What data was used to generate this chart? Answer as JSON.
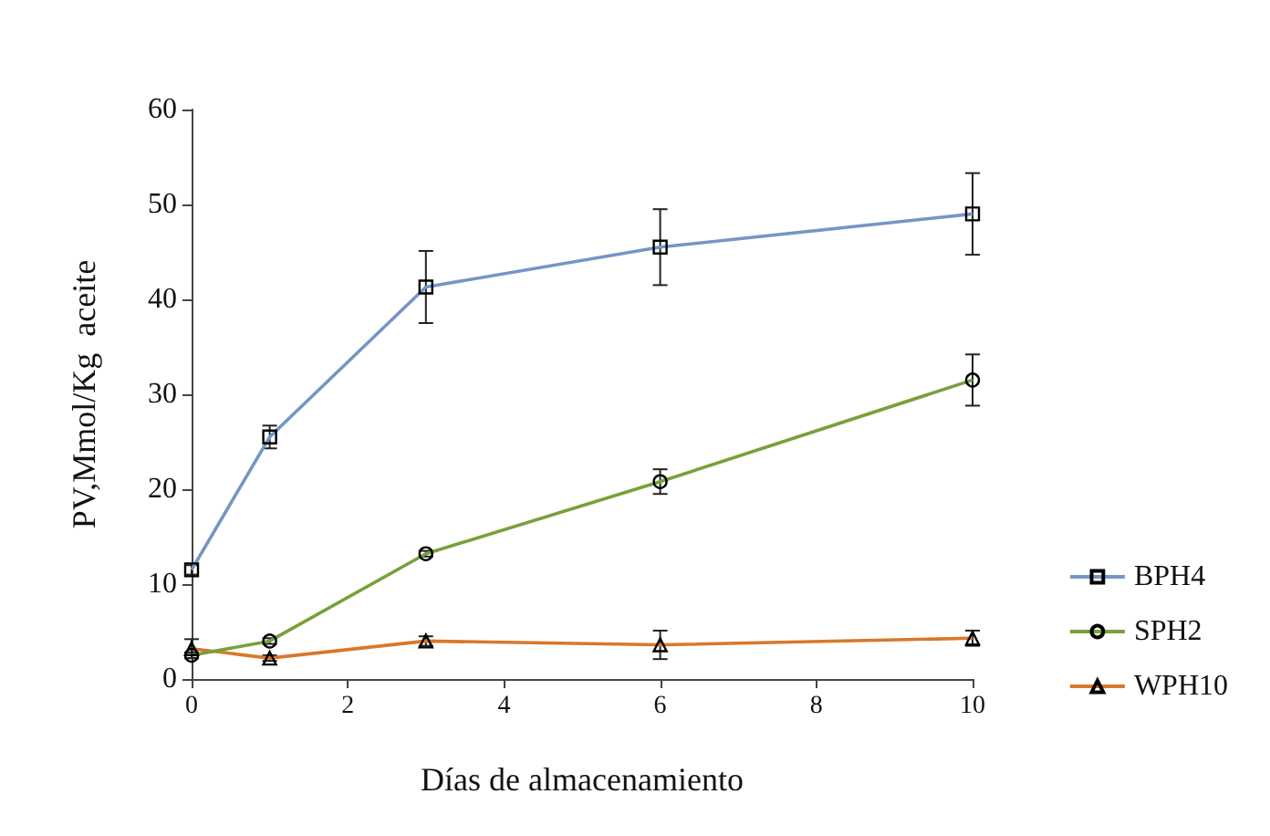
{
  "chart_data": {
    "type": "line",
    "xlabel": "Días de almacenamiento",
    "ylabel": "PV,Mmol/Kg  aceite",
    "x": [
      0,
      1,
      3,
      6,
      10
    ],
    "xlim": [
      0,
      10
    ],
    "xticks": [
      0,
      2,
      4,
      6,
      8,
      10
    ],
    "ylim": [
      0,
      60
    ],
    "yticks": [
      0,
      10,
      20,
      30,
      40,
      50,
      60
    ],
    "grid": false,
    "legend": "right",
    "line_style": "solid",
    "series": [
      {
        "name": "WPH10",
        "color": "#d9782a",
        "marker": "triangle",
        "values": [
          3.2,
          2.2,
          4,
          3.6,
          4.3
        ],
        "errors": [
          1,
          0.3,
          0.5,
          1.5,
          0.8
        ]
      },
      {
        "name": "SPH2",
        "color": "#77a13a",
        "marker": "circle",
        "values": [
          2.5,
          4,
          13.2,
          20.8,
          31.5
        ],
        "errors": [
          0.3,
          0.3,
          0.3,
          1.3,
          2.7
        ]
      },
      {
        "name": "BPH4",
        "color": "#7396c4",
        "marker": "square",
        "values": [
          11.5,
          25.5,
          41.3,
          45.5,
          49
        ],
        "errors": [
          0.5,
          1.2,
          3.8,
          4,
          4.3
        ]
      }
    ]
  }
}
